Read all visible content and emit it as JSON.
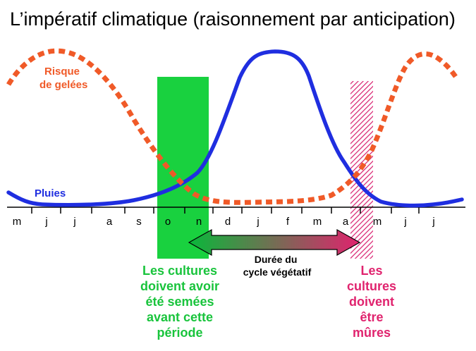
{
  "title": "L’impératif climatique (raisonnement par anticipation)",
  "months": [
    "m",
    "j",
    "j",
    "a",
    "s",
    "o",
    "n",
    "d",
    "j",
    "f",
    "m",
    "a",
    "m",
    "j",
    "j"
  ],
  "series": {
    "frost": {
      "label_line1": "Risque",
      "label_line2": "de gelées",
      "color": "#f05a28"
    },
    "rain": {
      "label": "Pluies",
      "color": "#1f2ee0"
    }
  },
  "sowing_zone": {
    "color": "#19d13f"
  },
  "harvest_zone": {
    "color": "#d81e6e"
  },
  "arrow": {
    "line1": "Durée du",
    "line2": "cycle végétatif",
    "color_start": "#09b83a",
    "color_end": "#e0236e"
  },
  "caption_left": {
    "color": "#19c43c",
    "lines": [
      "Les cultures",
      "doivent avoir",
      "été semées",
      "avant cette",
      "période"
    ]
  },
  "caption_right": {
    "color": "#e0236e",
    "lines": [
      "Les",
      "cultures",
      "doivent",
      "être",
      "mûres"
    ]
  }
}
